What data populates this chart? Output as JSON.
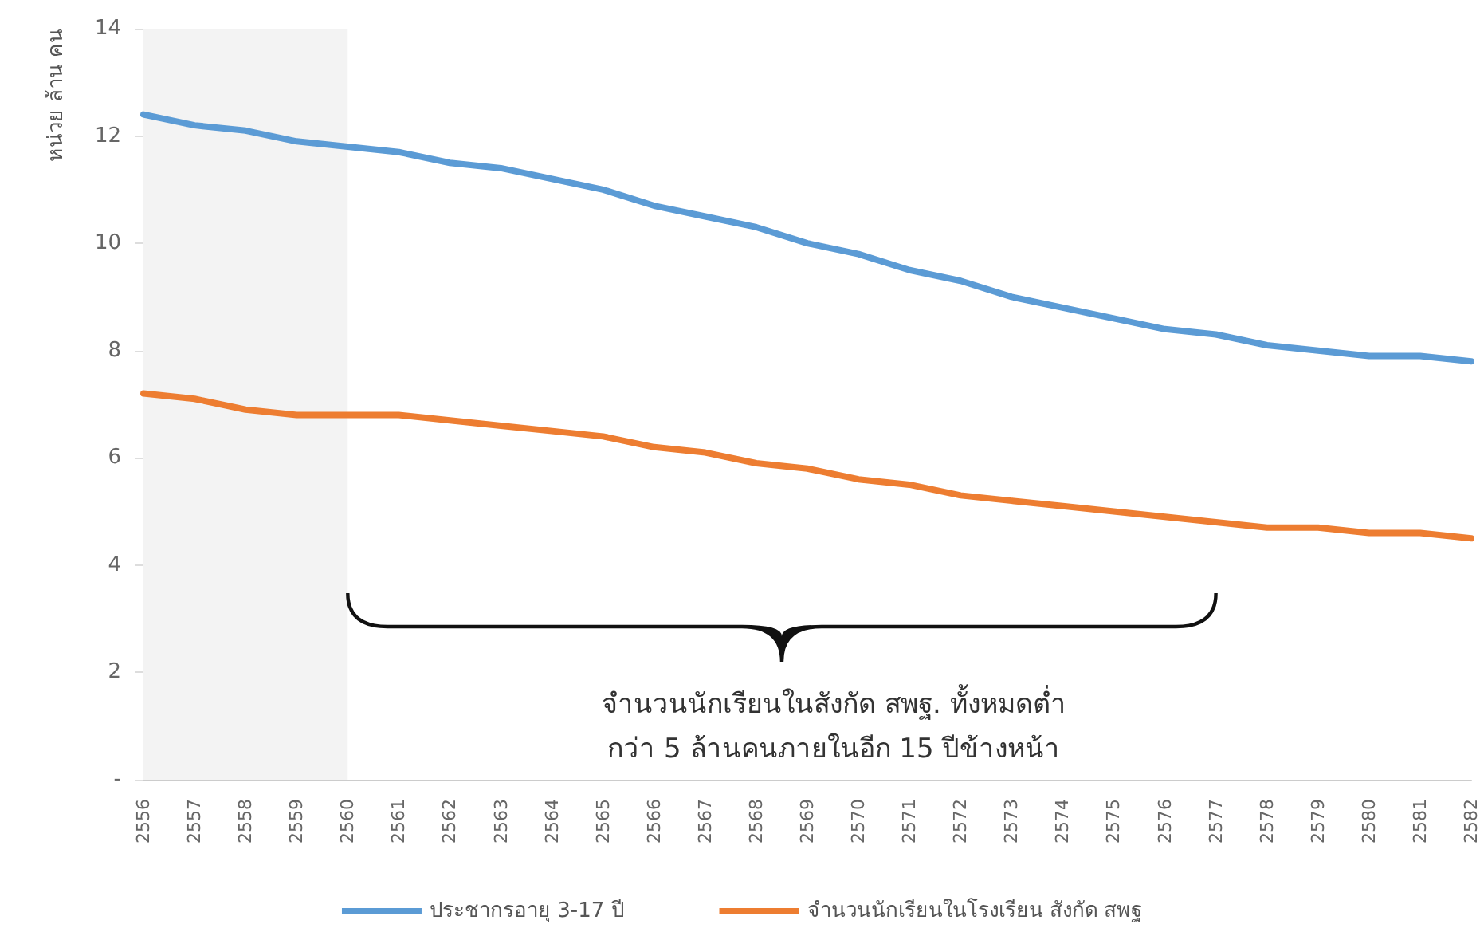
{
  "chart_data": {
    "type": "line",
    "ylabel": "หน่วย ล้าน คน",
    "categories": [
      "2556",
      "2557",
      "2558",
      "2559",
      "2560",
      "2561",
      "2562",
      "2563",
      "2564",
      "2565",
      "2566",
      "2567",
      "2568",
      "2569",
      "2570",
      "2571",
      "2572",
      "2573",
      "2574",
      "2575",
      "2576",
      "2577",
      "2578",
      "2579",
      "2580",
      "2581",
      "2582"
    ],
    "series": [
      {
        "name": "ประชากรอายุ 3-17 ปี",
        "color": "#5b9bd5",
        "values": [
          12.4,
          12.2,
          12.1,
          11.9,
          11.8,
          11.7,
          11.5,
          11.4,
          11.2,
          11.0,
          10.7,
          10.5,
          10.3,
          10.0,
          9.8,
          9.5,
          9.3,
          9.0,
          8.8,
          8.6,
          8.4,
          8.3,
          8.1,
          8.0,
          7.9,
          7.9,
          7.8
        ]
      },
      {
        "name": "จำนวนนักเรียนในโรงเรียน สังกัด สพฐ",
        "color": "#ed7d31",
        "values": [
          7.2,
          7.1,
          6.9,
          6.8,
          6.8,
          6.8,
          6.7,
          6.6,
          6.5,
          6.4,
          6.2,
          6.1,
          5.9,
          5.8,
          5.6,
          5.5,
          5.3,
          5.2,
          5.1,
          5.0,
          4.9,
          4.8,
          4.7,
          4.7,
          4.6,
          4.6,
          4.5
        ]
      }
    ],
    "ylim": [
      0,
      14
    ],
    "yticks": [
      {
        "value": 0,
        "label": "-"
      },
      2,
      4,
      6,
      8,
      10,
      12,
      14
    ],
    "grid": false,
    "legend": "bottom",
    "marker": "none",
    "line_style": "solid",
    "bands": [
      {
        "axis": "x",
        "from": "2556",
        "to": "2560",
        "color": "#efefef"
      }
    ],
    "annotations": [
      "จำนวนนักเรียนในสังกัด สพฐ. ทั้งหมดต่ำ\nกว่า 5 ล้านคนภายในอีก 15 ปีข้างหน้า"
    ]
  }
}
